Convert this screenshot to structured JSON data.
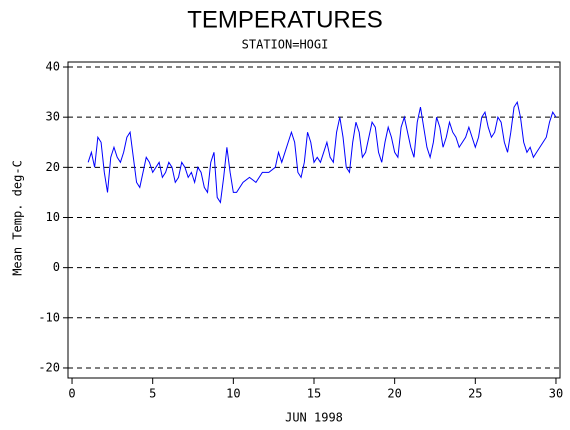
{
  "chart_data": {
    "type": "line",
    "title": "TEMPERATURES",
    "subtitle": "STATION=HOGI",
    "x_label": "JUN 1998",
    "y_label": "Mean Temp. deg-C",
    "xlim": [
      -0.25,
      30.25
    ],
    "xticks": [
      0,
      5,
      10,
      15,
      20,
      25,
      30
    ],
    "ylim": [
      -22,
      41
    ],
    "yticks": [
      -20,
      -10,
      0,
      10,
      20,
      30,
      40
    ],
    "grid": true,
    "series": [
      {
        "color": "#0000ff",
        "x": [
          1.0,
          1.2,
          1.4,
          1.6,
          1.8,
          2.0,
          2.2,
          2.4,
          2.6,
          2.8,
          3.0,
          3.2,
          3.4,
          3.6,
          3.8,
          4.0,
          4.2,
          4.4,
          4.6,
          4.8,
          5.0,
          5.2,
          5.4,
          5.6,
          5.8,
          6.0,
          6.2,
          6.4,
          6.6,
          6.8,
          7.0,
          7.2,
          7.4,
          7.6,
          7.8,
          8.0,
          8.2,
          8.4,
          8.6,
          8.8,
          9.0,
          9.2,
          9.4,
          9.6,
          9.8,
          10.0,
          10.2,
          10.6,
          11.0,
          11.4,
          11.8,
          12.2,
          12.6,
          12.8,
          13.0,
          13.2,
          13.4,
          13.6,
          13.8,
          14.0,
          14.2,
          14.4,
          14.6,
          14.8,
          15.0,
          15.2,
          15.4,
          15.6,
          15.8,
          16.0,
          16.2,
          16.4,
          16.6,
          16.8,
          17.0,
          17.2,
          17.4,
          17.6,
          17.8,
          18.0,
          18.2,
          18.4,
          18.6,
          18.8,
          19.0,
          19.2,
          19.4,
          19.6,
          19.8,
          20.0,
          20.2,
          20.4,
          20.6,
          20.8,
          21.0,
          21.2,
          21.4,
          21.6,
          21.8,
          22.0,
          22.2,
          22.4,
          22.6,
          22.8,
          23.0,
          23.2,
          23.4,
          23.6,
          23.8,
          24.0,
          24.2,
          24.4,
          24.6,
          24.8,
          25.0,
          25.2,
          25.4,
          25.6,
          25.8,
          26.0,
          26.2,
          26.4,
          26.6,
          26.8,
          27.0,
          27.2,
          27.4,
          27.6,
          27.8,
          28.0,
          28.2,
          28.4,
          28.6,
          28.8,
          29.0,
          29.2,
          29.4,
          29.6,
          29.8,
          30.0
        ],
        "values": [
          21,
          23,
          20,
          26,
          25,
          19,
          15,
          22,
          24,
          22,
          21,
          23,
          26,
          27,
          22,
          17,
          16,
          19,
          22,
          21,
          19,
          20,
          21,
          18,
          19,
          21,
          20,
          17,
          18,
          21,
          20,
          18,
          19,
          17,
          20,
          19,
          16,
          15,
          21,
          23,
          14,
          13,
          18,
          24,
          19,
          15,
          15,
          17,
          18,
          17,
          19,
          19,
          20,
          23,
          21,
          23,
          25,
          27,
          25,
          19,
          18,
          21,
          27,
          25,
          21,
          22,
          21,
          23,
          25,
          22,
          21,
          27,
          30,
          26,
          20,
          19,
          25,
          29,
          27,
          22,
          23,
          26,
          29,
          28,
          23,
          21,
          25,
          28,
          26,
          23,
          22,
          28,
          30,
          27,
          24,
          22,
          29,
          32,
          28,
          24,
          22,
          25,
          30,
          28,
          24,
          26,
          29,
          27,
          26,
          24,
          25,
          26,
          28,
          26,
          24,
          26,
          30,
          31,
          28,
          26,
          27,
          30,
          29,
          25,
          23,
          27,
          32,
          33,
          30,
          25,
          23,
          24,
          22,
          23,
          24,
          25,
          26,
          29,
          31,
          30
        ]
      }
    ]
  }
}
